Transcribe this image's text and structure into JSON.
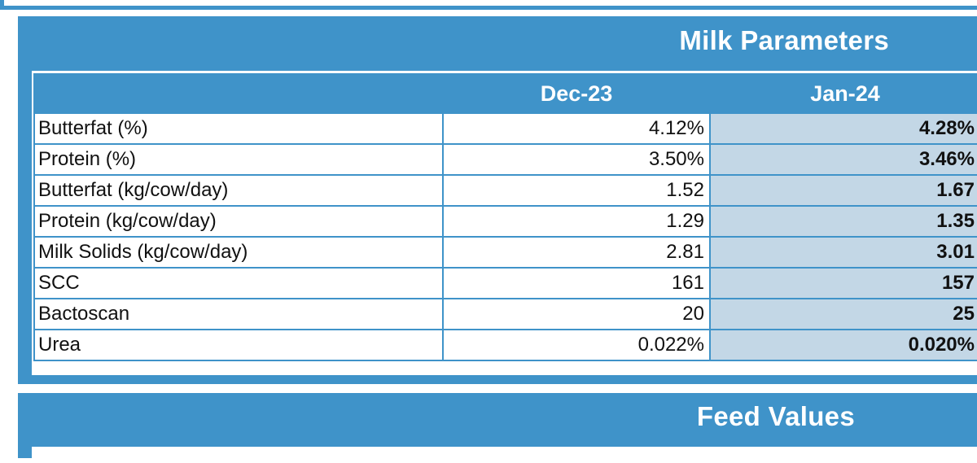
{
  "milk_parameters": {
    "title": "Milk Parameters",
    "columns": [
      "",
      "Dec-23",
      "Jan-24"
    ],
    "rows": [
      {
        "label": "Butterfat (%)",
        "dec": "4.12%",
        "jan": "4.28%"
      },
      {
        "label": "Protein (%)",
        "dec": "3.50%",
        "jan": "3.46%"
      },
      {
        "label": "Butterfat (kg/cow/day)",
        "dec": "1.52",
        "jan": "1.67"
      },
      {
        "label": "Protein (kg/cow/day)",
        "dec": "1.29",
        "jan": "1.35"
      },
      {
        "label": "Milk Solids (kg/cow/day)",
        "dec": "2.81",
        "jan": "3.01"
      },
      {
        "label": "SCC",
        "dec": "161",
        "jan": "157"
      },
      {
        "label": "Bactoscan",
        "dec": "20",
        "jan": "25"
      },
      {
        "label": "Urea",
        "dec": "0.022%",
        "jan": "0.020%"
      }
    ]
  },
  "feed_values": {
    "title": "Feed Values"
  },
  "colors": {
    "header_blue": "#3f93c9",
    "highlight_cell": "#c3d7e6"
  }
}
